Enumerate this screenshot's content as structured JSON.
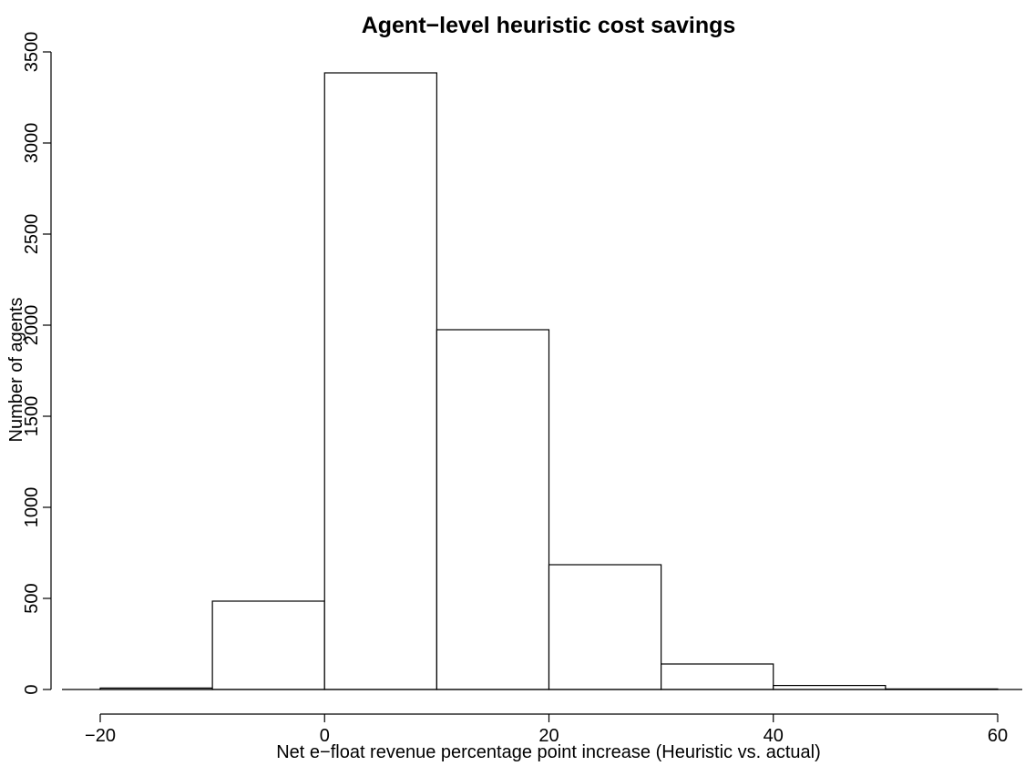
{
  "chart_data": {
    "type": "bar",
    "title": "Agent−level heuristic cost savings",
    "xlabel": "Net e−float revenue percentage point increase (Heuristic vs. actual)",
    "ylabel": "Number of agents",
    "bins": [
      {
        "x0": -20,
        "x1": -10,
        "count": 8
      },
      {
        "x0": -10,
        "x1": 0,
        "count": 485
      },
      {
        "x0": 0,
        "x1": 10,
        "count": 3385
      },
      {
        "x0": 10,
        "x1": 20,
        "count": 1975
      },
      {
        "x0": 20,
        "x1": 30,
        "count": 685
      },
      {
        "x0": 30,
        "x1": 40,
        "count": 140
      },
      {
        "x0": 40,
        "x1": 50,
        "count": 22
      },
      {
        "x0": 50,
        "x1": 60,
        "count": 3
      }
    ],
    "xlim": [
      -20,
      60
    ],
    "ylim": [
      0,
      3500
    ],
    "x_ticks": [
      {
        "value": -20,
        "label": "−20"
      },
      {
        "value": 0,
        "label": "0"
      },
      {
        "value": 20,
        "label": "20"
      },
      {
        "value": 40,
        "label": "40"
      },
      {
        "value": 60,
        "label": "60"
      }
    ],
    "y_ticks": [
      {
        "value": 0,
        "label": "0"
      },
      {
        "value": 500,
        "label": "500"
      },
      {
        "value": 1000,
        "label": "1000"
      },
      {
        "value": 1500,
        "label": "1500"
      },
      {
        "value": 2000,
        "label": "2000"
      },
      {
        "value": 2500,
        "label": "2500"
      },
      {
        "value": 3000,
        "label": "3000"
      },
      {
        "value": 3500,
        "label": "3500"
      }
    ],
    "grid": false,
    "legend": "none"
  }
}
